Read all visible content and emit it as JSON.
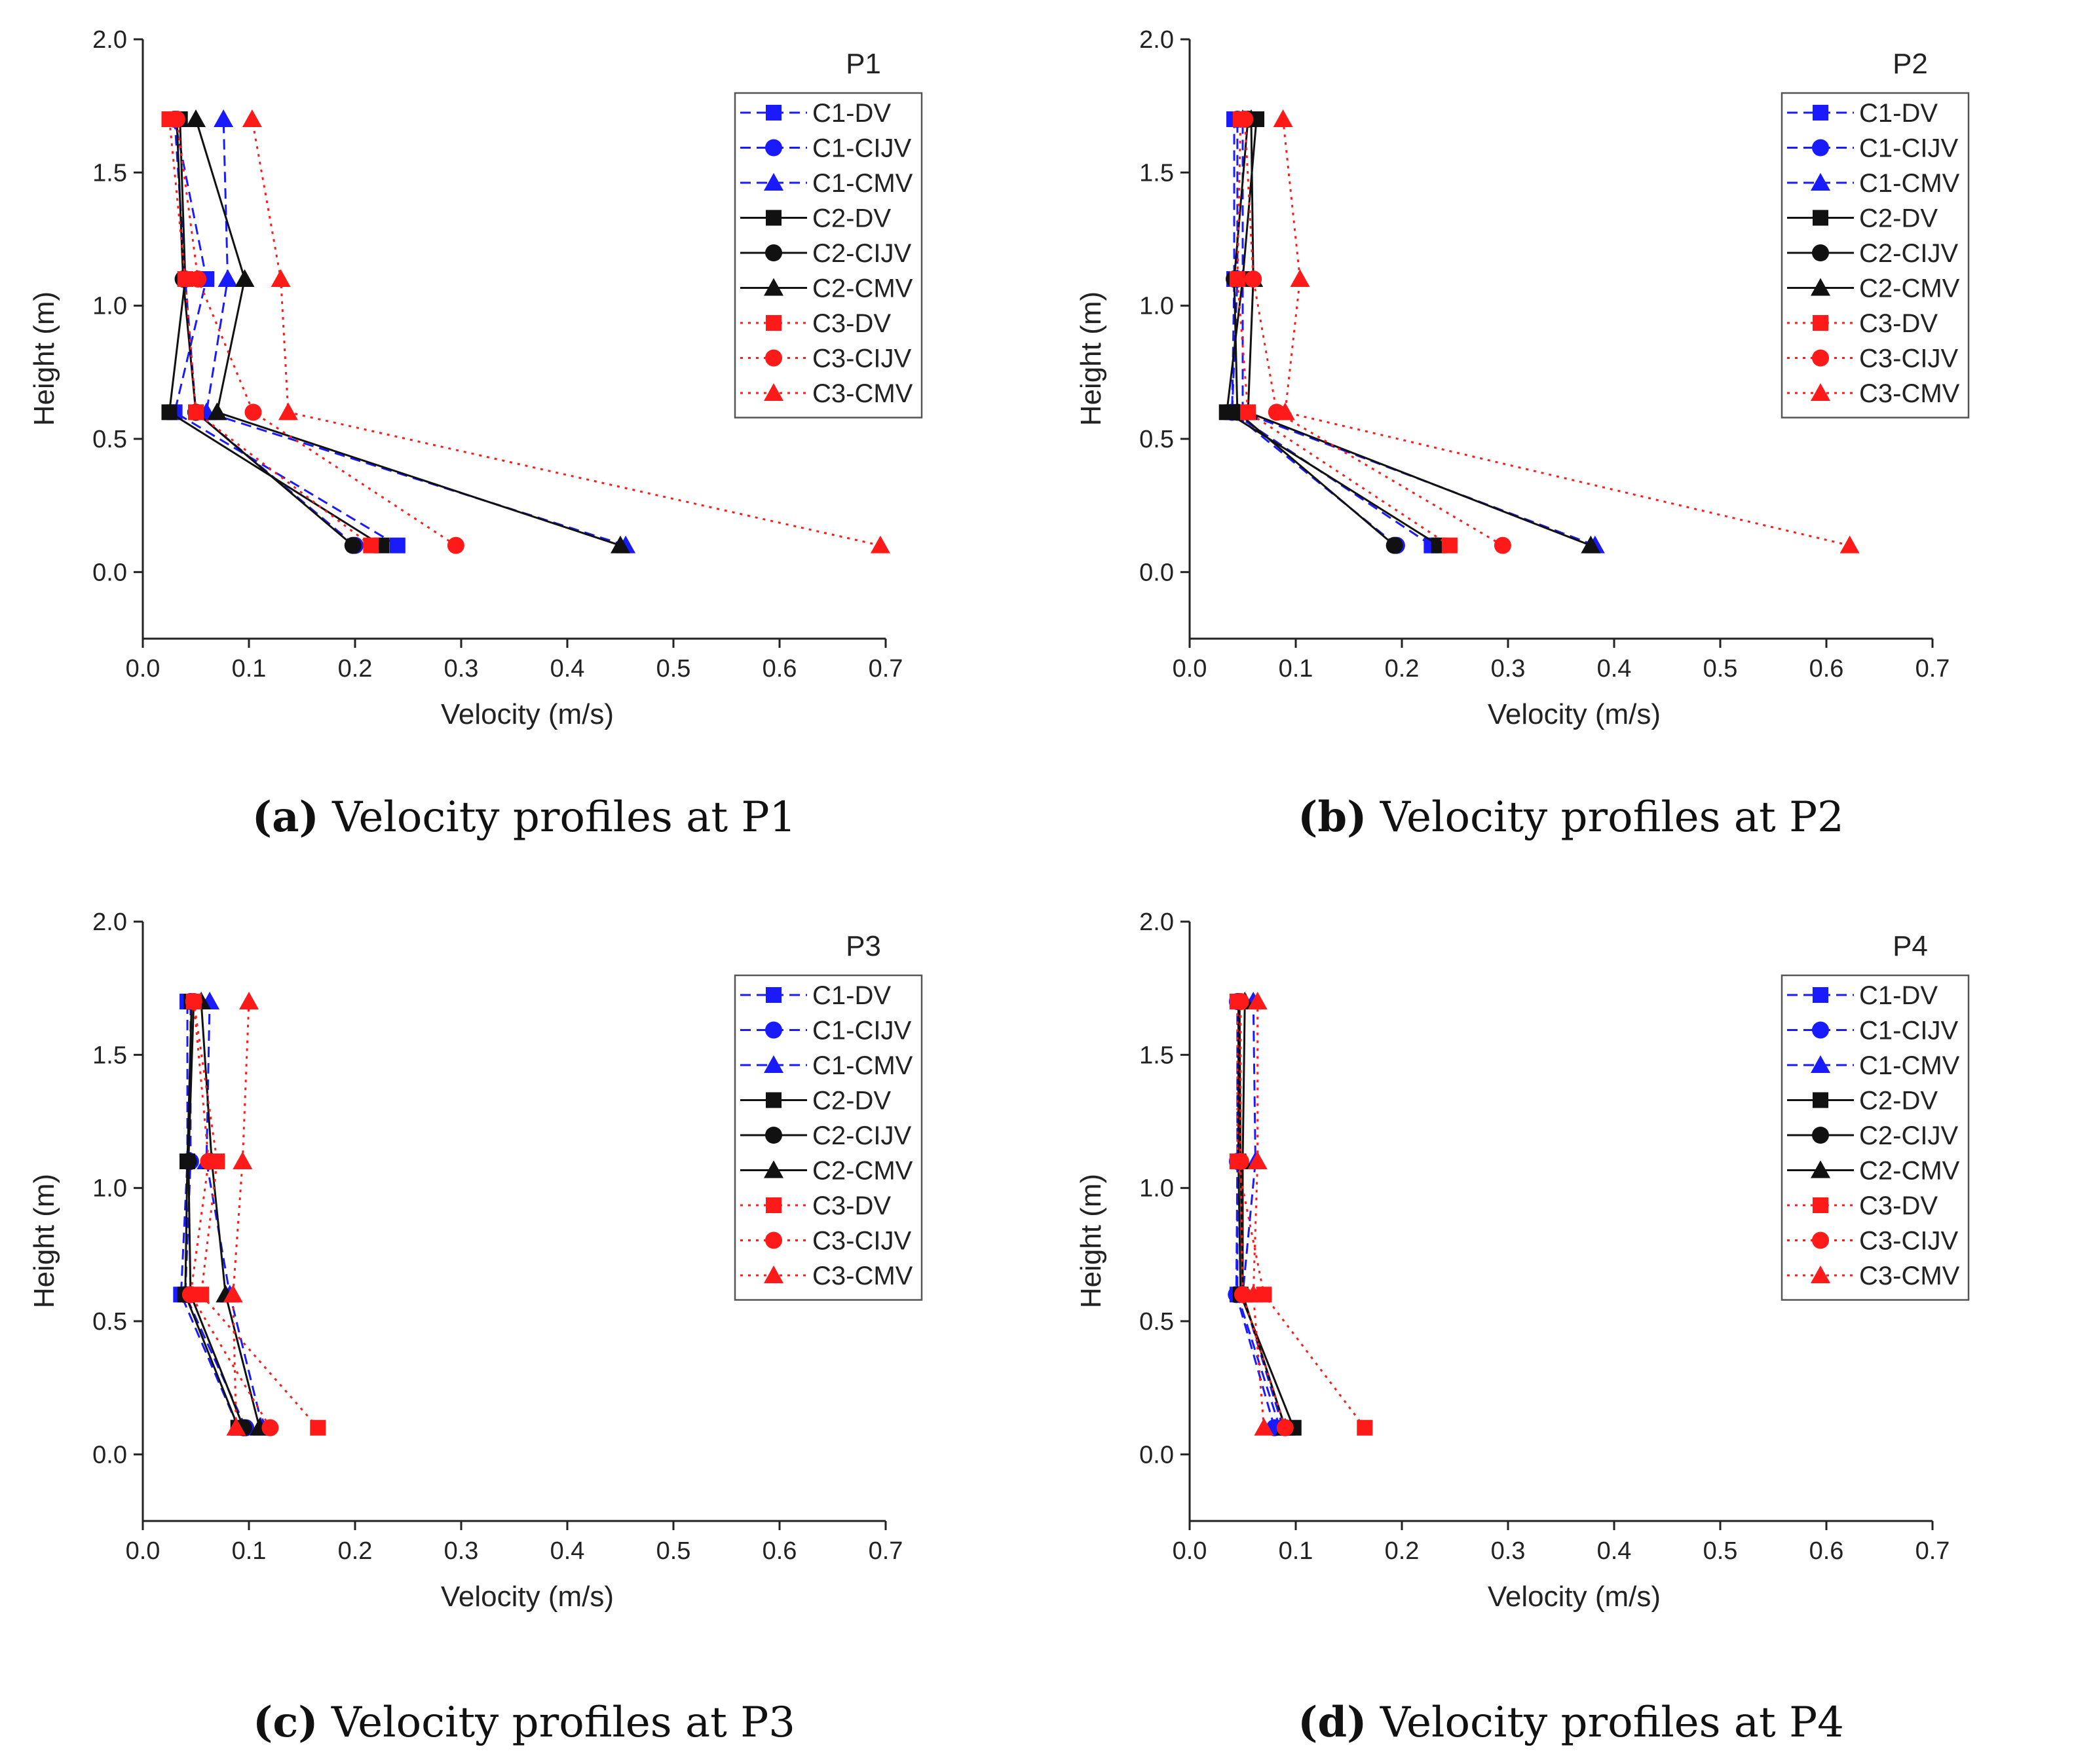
{
  "colors": {
    "C1": "#1a1aff",
    "C2": "#111111",
    "C3": "#ff1a1a"
  },
  "chart_data": [
    {
      "type": "line",
      "panel_title": "P1",
      "caption_letter": "(a)",
      "caption_text": "Velocity profiles at P1",
      "xlabel": "Velocity (m/s)",
      "ylabel": "Height (m)",
      "xlim": [
        0,
        0.7
      ],
      "ylim": [
        -0.25,
        2.0
      ],
      "xticks": [
        "0.0",
        "0.1",
        "0.2",
        "0.3",
        "0.4",
        "0.5",
        "0.6",
        "0.7"
      ],
      "yticks": [
        "0.0",
        "0.5",
        "1.0",
        "1.5",
        "2.0"
      ],
      "y_heights": [
        0.1,
        0.6,
        1.1,
        1.7
      ],
      "series": [
        {
          "name": "C1-DV",
          "group": "C1",
          "marker": "square",
          "x": [
            0.24,
            0.03,
            0.06,
            0.03
          ]
        },
        {
          "name": "C1-CIJV",
          "group": "C1",
          "marker": "circle",
          "x": [
            0.2,
            0.05,
            0.04,
            0.03
          ]
        },
        {
          "name": "C1-CMV",
          "group": "C1",
          "marker": "triangle",
          "x": [
            0.455,
            0.06,
            0.08,
            0.076
          ]
        },
        {
          "name": "C2-DV",
          "group": "C2",
          "marker": "square",
          "x": [
            0.225,
            0.025,
            0.04,
            0.035
          ]
        },
        {
          "name": "C2-CIJV",
          "group": "C2",
          "marker": "circle",
          "x": [
            0.198,
            0.05,
            0.038,
            0.032
          ]
        },
        {
          "name": "C2-CMV",
          "group": "C2",
          "marker": "triangle",
          "x": [
            0.45,
            0.07,
            0.096,
            0.05
          ]
        },
        {
          "name": "C3-DV",
          "group": "C3",
          "marker": "square",
          "x": [
            0.215,
            0.05,
            0.04,
            0.025
          ]
        },
        {
          "name": "C3-CIJV",
          "group": "C3",
          "marker": "circle",
          "x": [
            0.295,
            0.104,
            0.052,
            0.032
          ]
        },
        {
          "name": "C3-CMV",
          "group": "C3",
          "marker": "triangle",
          "x": [
            0.695,
            0.137,
            0.13,
            0.103
          ]
        }
      ]
    },
    {
      "type": "line",
      "panel_title": "P2",
      "caption_letter": "(b)",
      "caption_text": "Velocity profiles at P2",
      "xlabel": "Velocity (m/s)",
      "ylabel": "Height (m)",
      "xlim": [
        0,
        0.7
      ],
      "ylim": [
        -0.25,
        2.0
      ],
      "xticks": [
        "0.0",
        "0.1",
        "0.2",
        "0.3",
        "0.4",
        "0.5",
        "0.6",
        "0.7"
      ],
      "yticks": [
        "0.0",
        "0.5",
        "1.0",
        "1.5",
        "2.0"
      ],
      "y_heights": [
        0.1,
        0.6,
        1.1,
        1.7
      ],
      "series": [
        {
          "name": "C1-DV",
          "group": "C1",
          "marker": "square",
          "x": [
            0.228,
            0.04,
            0.042,
            0.042
          ]
        },
        {
          "name": "C1-CIJV",
          "group": "C1",
          "marker": "circle",
          "x": [
            0.195,
            0.04,
            0.045,
            0.045
          ]
        },
        {
          "name": "C1-CMV",
          "group": "C1",
          "marker": "triangle",
          "x": [
            0.382,
            0.05,
            0.05,
            0.05
          ]
        },
        {
          "name": "C2-DV",
          "group": "C2",
          "marker": "square",
          "x": [
            0.235,
            0.035,
            0.05,
            0.063
          ]
        },
        {
          "name": "C2-CIJV",
          "group": "C2",
          "marker": "circle",
          "x": [
            0.193,
            0.045,
            0.042,
            0.055
          ]
        },
        {
          "name": "C2-CMV",
          "group": "C2",
          "marker": "triangle",
          "x": [
            0.378,
            0.055,
            0.06,
            0.058
          ]
        },
        {
          "name": "C3-DV",
          "group": "C3",
          "marker": "square",
          "x": [
            0.245,
            0.055,
            0.045,
            0.048
          ]
        },
        {
          "name": "C3-CIJV",
          "group": "C3",
          "marker": "circle",
          "x": [
            0.295,
            0.082,
            0.06,
            0.052
          ]
        },
        {
          "name": "C3-CMV",
          "group": "C3",
          "marker": "triangle",
          "x": [
            0.622,
            0.09,
            0.104,
            0.088
          ]
        }
      ]
    },
    {
      "type": "line",
      "panel_title": "P3",
      "caption_letter": "(c)",
      "caption_text": "Velocity profiles at P3",
      "xlabel": "Velocity (m/s)",
      "ylabel": "Height (m)",
      "xlim": [
        0,
        0.7
      ],
      "ylim": [
        -0.25,
        2.0
      ],
      "xticks": [
        "0.0",
        "0.1",
        "0.2",
        "0.3",
        "0.4",
        "0.5",
        "0.6",
        "0.7"
      ],
      "yticks": [
        "0.0",
        "0.5",
        "1.0",
        "1.5",
        "2.0"
      ],
      "y_heights": [
        0.1,
        0.6,
        1.1,
        1.7
      ],
      "series": [
        {
          "name": "C1-DV",
          "group": "C1",
          "marker": "square",
          "x": [
            0.09,
            0.036,
            0.042,
            0.042
          ]
        },
        {
          "name": "C1-CIJV",
          "group": "C1",
          "marker": "circle",
          "x": [
            0.097,
            0.04,
            0.045,
            0.045
          ]
        },
        {
          "name": "C1-CMV",
          "group": "C1",
          "marker": "triangle",
          "x": [
            0.113,
            0.082,
            0.06,
            0.063
          ]
        },
        {
          "name": "C2-DV",
          "group": "C2",
          "marker": "square",
          "x": [
            0.09,
            0.04,
            0.042,
            0.046
          ]
        },
        {
          "name": "C2-CIJV",
          "group": "C2",
          "marker": "circle",
          "x": [
            0.095,
            0.045,
            0.043,
            0.048
          ]
        },
        {
          "name": "C2-CMV",
          "group": "C2",
          "marker": "triangle",
          "x": [
            0.11,
            0.078,
            0.065,
            0.055
          ]
        },
        {
          "name": "C3-DV",
          "group": "C3",
          "marker": "square",
          "x": [
            0.165,
            0.055,
            0.07,
            0.048
          ]
        },
        {
          "name": "C3-CIJV",
          "group": "C3",
          "marker": "circle",
          "x": [
            0.12,
            0.045,
            0.062,
            0.048
          ]
        },
        {
          "name": "C3-CMV",
          "group": "C3",
          "marker": "triangle",
          "x": [
            0.088,
            0.085,
            0.094,
            0.1
          ]
        }
      ]
    },
    {
      "type": "line",
      "panel_title": "P4",
      "caption_letter": "(d)",
      "caption_text": "Velocity profiles at P4",
      "xlabel": "Velocity (m/s)",
      "ylabel": "Height (m)",
      "xlim": [
        0,
        0.7
      ],
      "ylim": [
        -0.25,
        2.0
      ],
      "xticks": [
        "0.0",
        "0.1",
        "0.2",
        "0.3",
        "0.4",
        "0.5",
        "0.6",
        "0.7"
      ],
      "yticks": [
        "0.0",
        "0.5",
        "1.0",
        "1.5",
        "2.0"
      ],
      "y_heights": [
        0.1,
        0.6,
        1.1,
        1.7
      ],
      "series": [
        {
          "name": "C1-DV",
          "group": "C1",
          "marker": "square",
          "x": [
            0.085,
            0.045,
            0.045,
            0.045
          ]
        },
        {
          "name": "C1-CIJV",
          "group": "C1",
          "marker": "circle",
          "x": [
            0.08,
            0.044,
            0.045,
            0.045
          ]
        },
        {
          "name": "C1-CMV",
          "group": "C1",
          "marker": "triangle",
          "x": [
            0.088,
            0.05,
            0.062,
            0.06
          ]
        },
        {
          "name": "C2-DV",
          "group": "C2",
          "marker": "square",
          "x": [
            0.098,
            0.048,
            0.046,
            0.046
          ]
        },
        {
          "name": "C2-CIJV",
          "group": "C2",
          "marker": "circle",
          "x": [
            0.09,
            0.05,
            0.048,
            0.047
          ]
        },
        {
          "name": "C2-CMV",
          "group": "C2",
          "marker": "triangle",
          "x": [
            0.09,
            0.05,
            0.05,
            0.052
          ]
        },
        {
          "name": "C3-DV",
          "group": "C3",
          "marker": "square",
          "x": [
            0.165,
            0.07,
            0.045,
            0.045
          ]
        },
        {
          "name": "C3-CIJV",
          "group": "C3",
          "marker": "circle",
          "x": [
            0.09,
            0.05,
            0.048,
            0.048
          ]
        },
        {
          "name": "C3-CMV",
          "group": "C3",
          "marker": "triangle",
          "x": [
            0.07,
            0.06,
            0.064,
            0.064
          ]
        }
      ]
    }
  ]
}
